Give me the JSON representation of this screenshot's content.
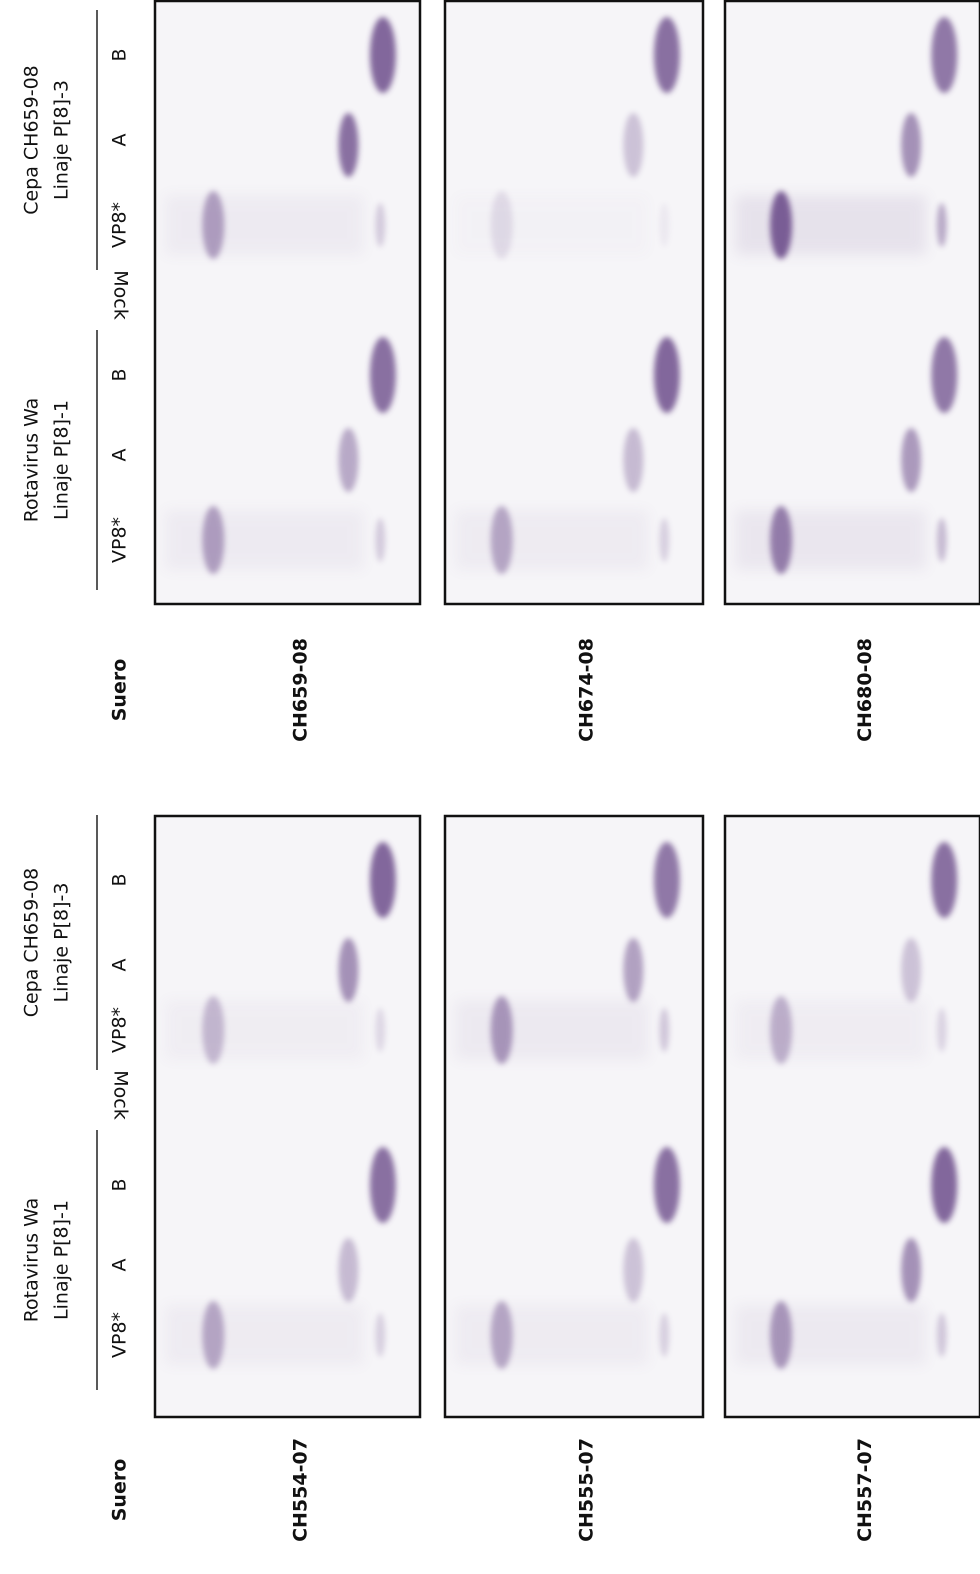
{
  "panels": [
    {
      "header": {
        "serum_label": "Suero",
        "group_1": {
          "title_lines": [
            "Rotavirus Wa",
            "Linaje P[8]-1"
          ],
          "lanes": [
            "VP8*",
            "A",
            "B"
          ]
        },
        "mock": "Mock",
        "group_2": {
          "title_lines": [
            "Cepa CH659-08",
            "Linaje P[8]-3"
          ],
          "lanes": [
            "VP8*",
            "A",
            "B"
          ]
        }
      },
      "sera": [
        "CH659-08",
        "CH674-08",
        "CH680-08"
      ]
    },
    {
      "header": {
        "serum_label": "Suero",
        "group_1": {
          "title_lines": [
            "Rotavirus Wa",
            "Linaje P[8]-1"
          ],
          "lanes": [
            "VP8*",
            "A",
            "B"
          ]
        },
        "mock": "Mock",
        "group_2": {
          "title_lines": [
            "Cepa CH659-08",
            "Linaje P[8]-3"
          ],
          "lanes": [
            "VP8*",
            "A",
            "B"
          ]
        }
      },
      "sera": [
        "CH554-07",
        "CH555-07",
        "CH557-07"
      ]
    }
  ]
}
